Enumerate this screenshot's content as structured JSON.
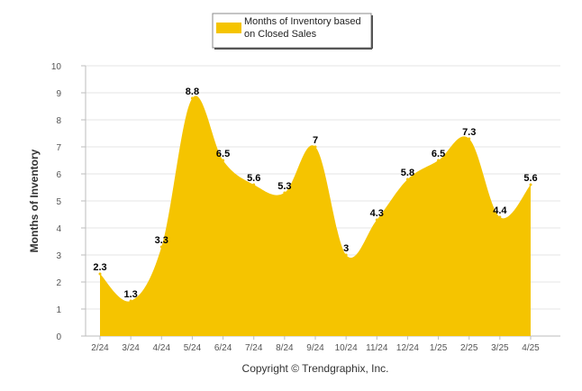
{
  "chart_data": {
    "type": "area",
    "title": "",
    "xlabel": "",
    "ylabel": "Months of Inventory",
    "categories": [
      "2/24",
      "3/24",
      "4/24",
      "5/24",
      "6/24",
      "7/24",
      "8/24",
      "9/24",
      "10/24",
      "11/24",
      "12/24",
      "1/25",
      "2/25",
      "3/25",
      "4/25"
    ],
    "series": [
      {
        "name": "Months of Inventory based on Closed Sales",
        "values": [
          2.3,
          1.3,
          3.3,
          8.8,
          6.5,
          5.6,
          5.3,
          7,
          3,
          4.3,
          5.8,
          6.5,
          7.3,
          4.4,
          5.6
        ],
        "labels": [
          "2.3",
          "1.3",
          "3.3",
          "8.8",
          "6.5",
          "5.6",
          "5.3",
          "7",
          "3",
          "4.3",
          "5.8",
          "6.5",
          "7.3",
          "4.4",
          "5.6"
        ],
        "color": "#F5C400"
      }
    ],
    "ylim": [
      0,
      10
    ],
    "yticks": [
      "0",
      "1",
      "2",
      "3",
      "4",
      "5",
      "6",
      "7",
      "8",
      "9",
      "10"
    ],
    "grid": true,
    "legend_position": "top-center",
    "legend_lines": [
      "Months of Inventory based",
      "on Closed Sales"
    ]
  },
  "footer": {
    "copyright": "Copyright © Trendgraphix, Inc."
  },
  "colors": {
    "fill": "#F5C400",
    "grid": "#e6e6e6",
    "axis": "#cccccc"
  }
}
